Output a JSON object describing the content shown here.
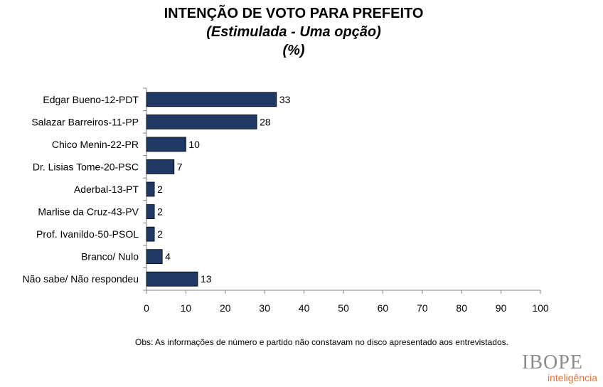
{
  "chart_data": {
    "type": "bar",
    "orientation": "horizontal",
    "title": "INTENÇÃO DE VOTO PARA PREFEITO",
    "subtitle": "(Estimulada - Uma opção)",
    "unit": "(%)",
    "categories": [
      "Edgar Bueno-12-PDT",
      "Salazar Barreiros-11-PP",
      "Chico Menin-22-PR",
      "Dr. Lisias Tome-20-PSC",
      "Aderbal-13-PT",
      "Marlise da Cruz-43-PV",
      "Prof. Ivanildo-50-PSOL",
      "Branco/ Nulo",
      "Não sabe/ Não respondeu"
    ],
    "values": [
      33,
      28,
      10,
      7,
      2,
      2,
      2,
      4,
      13
    ],
    "xlim": [
      0,
      100
    ],
    "xticks": [
      0,
      10,
      20,
      30,
      40,
      50,
      60,
      70,
      80,
      90,
      100
    ],
    "xlabel": "",
    "ylabel": "",
    "grid": false,
    "bar_color": "#1f3864"
  },
  "note": "Obs: As informações de número e partido não constavam no disco apresentado aos entrevistados.",
  "logo": {
    "main": "IBOPE",
    "sub": "inteligência"
  },
  "colors": {
    "bar": "#1f3864",
    "logo_main": "#8c8c8c",
    "logo_sub": "#e8743b"
  }
}
